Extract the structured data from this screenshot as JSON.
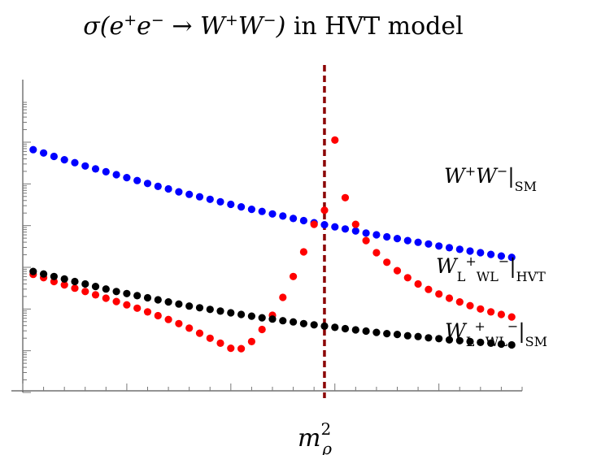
{
  "chart_data": {
    "type": "scatter",
    "title": "σ(e⁺e⁻ → W⁺W⁻) in HVT model",
    "xlabel": "m_ρ²",
    "ylabel": "",
    "y_scale": "log",
    "xlim": [
      0,
      24
    ],
    "ylim": [
      0,
      7.5
    ],
    "grid": false,
    "x_marker": {
      "x": 14.5,
      "label": "m_ρ²",
      "style": "dashed",
      "color": "#8b0000"
    },
    "series": [
      {
        "name": "W⁺W⁻|_SM",
        "color": "#0000ff",
        "points": [
          [
            0.5,
            5.82
          ],
          [
            1.0,
            5.74
          ],
          [
            1.5,
            5.66
          ],
          [
            2.0,
            5.58
          ],
          [
            2.5,
            5.51
          ],
          [
            3.0,
            5.43
          ],
          [
            3.5,
            5.36
          ],
          [
            4.0,
            5.29
          ],
          [
            4.5,
            5.22
          ],
          [
            5.0,
            5.15
          ],
          [
            5.5,
            5.08
          ],
          [
            6.0,
            5.01
          ],
          [
            6.5,
            4.94
          ],
          [
            7.0,
            4.88
          ],
          [
            7.5,
            4.81
          ],
          [
            8.0,
            4.75
          ],
          [
            8.5,
            4.69
          ],
          [
            9.0,
            4.63
          ],
          [
            9.5,
            4.57
          ],
          [
            10.0,
            4.51
          ],
          [
            10.5,
            4.45
          ],
          [
            11.0,
            4.39
          ],
          [
            11.5,
            4.34
          ],
          [
            12.0,
            4.28
          ],
          [
            12.5,
            4.23
          ],
          [
            13.0,
            4.17
          ],
          [
            13.5,
            4.12
          ],
          [
            14.0,
            4.07
          ],
          [
            14.5,
            4.02
          ],
          [
            15.0,
            3.97
          ],
          [
            15.5,
            3.92
          ],
          [
            16.0,
            3.87
          ],
          [
            16.5,
            3.82
          ],
          [
            17.0,
            3.78
          ],
          [
            17.5,
            3.73
          ],
          [
            18.0,
            3.69
          ],
          [
            18.5,
            3.64
          ],
          [
            19.0,
            3.6
          ],
          [
            19.5,
            3.56
          ],
          [
            20.0,
            3.51
          ],
          [
            20.5,
            3.47
          ],
          [
            21.0,
            3.43
          ],
          [
            21.5,
            3.39
          ],
          [
            22.0,
            3.35
          ],
          [
            22.5,
            3.31
          ],
          [
            23.0,
            3.27
          ],
          [
            23.5,
            3.24
          ]
        ]
      },
      {
        "name": "W_L⁺W_L⁻|_HVT",
        "color": "#ff0000",
        "points": [
          [
            0.5,
            2.83
          ],
          [
            1.0,
            2.75
          ],
          [
            1.5,
            2.66
          ],
          [
            2.0,
            2.58
          ],
          [
            2.5,
            2.5
          ],
          [
            3.0,
            2.42
          ],
          [
            3.5,
            2.34
          ],
          [
            4.0,
            2.26
          ],
          [
            4.5,
            2.18
          ],
          [
            5.0,
            2.1
          ],
          [
            5.5,
            2.02
          ],
          [
            6.0,
            1.93
          ],
          [
            6.5,
            1.84
          ],
          [
            7.0,
            1.75
          ],
          [
            7.5,
            1.65
          ],
          [
            8.0,
            1.54
          ],
          [
            8.5,
            1.42
          ],
          [
            9.0,
            1.3
          ],
          [
            9.5,
            1.18
          ],
          [
            10.0,
            1.06
          ],
          [
            10.5,
            1.05
          ],
          [
            11.0,
            1.22
          ],
          [
            11.5,
            1.51
          ],
          [
            12.0,
            1.85
          ],
          [
            12.5,
            2.28
          ],
          [
            13.0,
            2.78
          ],
          [
            13.5,
            3.37
          ],
          [
            14.0,
            4.03
          ],
          [
            14.5,
            4.37
          ],
          [
            15.0,
            6.05
          ],
          [
            15.5,
            4.67
          ],
          [
            16.0,
            4.03
          ],
          [
            16.5,
            3.64
          ],
          [
            17.0,
            3.35
          ],
          [
            17.5,
            3.12
          ],
          [
            18.0,
            2.92
          ],
          [
            18.5,
            2.75
          ],
          [
            19.0,
            2.6
          ],
          [
            19.5,
            2.47
          ],
          [
            20.0,
            2.36
          ],
          [
            20.5,
            2.26
          ],
          [
            21.0,
            2.17
          ],
          [
            21.5,
            2.08
          ],
          [
            22.0,
            2.0
          ],
          [
            22.5,
            1.93
          ],
          [
            23.0,
            1.87
          ],
          [
            23.5,
            1.81
          ]
        ]
      },
      {
        "name": "W_L⁺W_L⁻|_SM",
        "color": "#000000",
        "points": [
          [
            0.5,
            2.9
          ],
          [
            1.0,
            2.84
          ],
          [
            1.5,
            2.78
          ],
          [
            2.0,
            2.72
          ],
          [
            2.5,
            2.66
          ],
          [
            3.0,
            2.6
          ],
          [
            3.5,
            2.54
          ],
          [
            4.0,
            2.48
          ],
          [
            4.5,
            2.42
          ],
          [
            5.0,
            2.37
          ],
          [
            5.5,
            2.32
          ],
          [
            6.0,
            2.27
          ],
          [
            6.5,
            2.22
          ],
          [
            7.0,
            2.17
          ],
          [
            7.5,
            2.12
          ],
          [
            8.0,
            2.07
          ],
          [
            8.5,
            2.03
          ],
          [
            9.0,
            1.99
          ],
          [
            9.5,
            1.95
          ],
          [
            10.0,
            1.91
          ],
          [
            10.5,
            1.87
          ],
          [
            11.0,
            1.83
          ],
          [
            11.5,
            1.79
          ],
          [
            12.0,
            1.76
          ],
          [
            12.5,
            1.72
          ],
          [
            13.0,
            1.69
          ],
          [
            13.5,
            1.65
          ],
          [
            14.0,
            1.62
          ],
          [
            14.5,
            1.59
          ],
          [
            15.0,
            1.56
          ],
          [
            15.5,
            1.53
          ],
          [
            16.0,
            1.5
          ],
          [
            16.5,
            1.47
          ],
          [
            17.0,
            1.44
          ],
          [
            17.5,
            1.41
          ],
          [
            18.0,
            1.39
          ],
          [
            18.5,
            1.36
          ],
          [
            19.0,
            1.34
          ],
          [
            19.5,
            1.31
          ],
          [
            20.0,
            1.29
          ],
          [
            20.5,
            1.26
          ],
          [
            21.0,
            1.24
          ],
          [
            21.5,
            1.22
          ],
          [
            22.0,
            1.2
          ],
          [
            22.5,
            1.18
          ],
          [
            23.0,
            1.16
          ],
          [
            23.5,
            1.14
          ]
        ]
      }
    ]
  }
}
